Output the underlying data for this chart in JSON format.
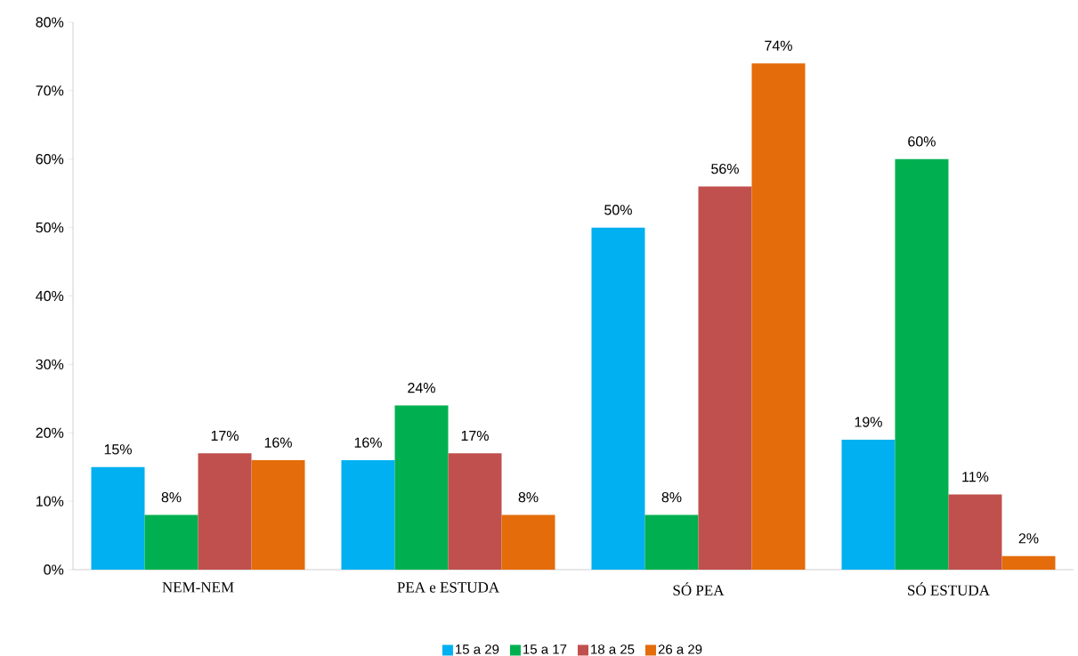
{
  "chart_data": {
    "type": "bar",
    "categories": [
      "NEM-NEM",
      "PEA e ESTUDA",
      "SÓ PEA",
      "SÓ ESTUDA"
    ],
    "series": [
      {
        "name": "15 a 29",
        "color": "#00b0f0",
        "values": [
          15,
          16,
          50,
          19
        ],
        "value_labels": [
          "15%",
          "16%",
          "50%",
          "19%"
        ]
      },
      {
        "name": "15 a 17",
        "color": "#00b050",
        "values": [
          8,
          24,
          8,
          60
        ],
        "value_labels": [
          "8%",
          "24%",
          "8%",
          "60%"
        ]
      },
      {
        "name": "18 a 25",
        "color": "#c0504d",
        "values": [
          17,
          17,
          56,
          11
        ],
        "value_labels": [
          "17%",
          "17%",
          "56%",
          "11%"
        ]
      },
      {
        "name": "26 a 29",
        "color": "#e46c0a",
        "values": [
          16,
          8,
          74,
          2
        ],
        "value_labels": [
          "16%",
          "8%",
          "74%",
          "2%"
        ]
      }
    ],
    "ylim": [
      0,
      80
    ],
    "yticks": [
      {
        "value": 0,
        "label": "0%"
      },
      {
        "value": 10,
        "label": "10%"
      },
      {
        "value": 20,
        "label": "20%"
      },
      {
        "value": 30,
        "label": "30%"
      },
      {
        "value": 40,
        "label": "40%"
      },
      {
        "value": 50,
        "label": "50%"
      },
      {
        "value": 60,
        "label": "60%"
      },
      {
        "value": 70,
        "label": "70%"
      },
      {
        "value": 80,
        "label": "80%"
      }
    ],
    "grid": false,
    "legend": "bottom"
  }
}
